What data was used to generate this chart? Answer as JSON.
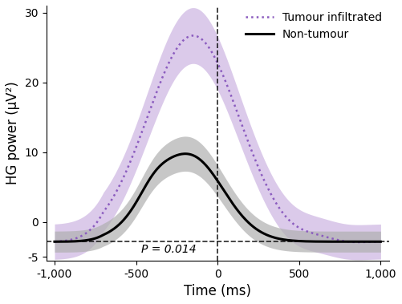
{
  "xlim": [
    -1050,
    1050
  ],
  "ylim": [
    -5.5,
    31
  ],
  "yticks": [
    -5,
    0,
    10,
    20,
    30
  ],
  "ytick_labels": [
    "-5",
    "0",
    "10",
    "20",
    "30"
  ],
  "xticks": [
    -1000,
    -500,
    0,
    500,
    1000
  ],
  "xtick_labels": [
    "-1,000",
    "-500",
    "0",
    "500",
    "1,000"
  ],
  "xlabel": "Time (ms)",
  "ylabel": "HG power (μV²)",
  "p_value_text": "P = 0.014",
  "tumour_color": "#8B5CBF",
  "tumour_fill_color": "#C4A8DC",
  "nontumour_color": "#000000",
  "nontumour_fill_color": "#B0B0B0",
  "legend_tumour": "Tumour infiltrated",
  "legend_nontumour": "Non-tumour",
  "baseline_y": -2.8,
  "dashed_vline_x": 0,
  "figsize": [
    5.02,
    3.79
  ],
  "dpi": 100
}
